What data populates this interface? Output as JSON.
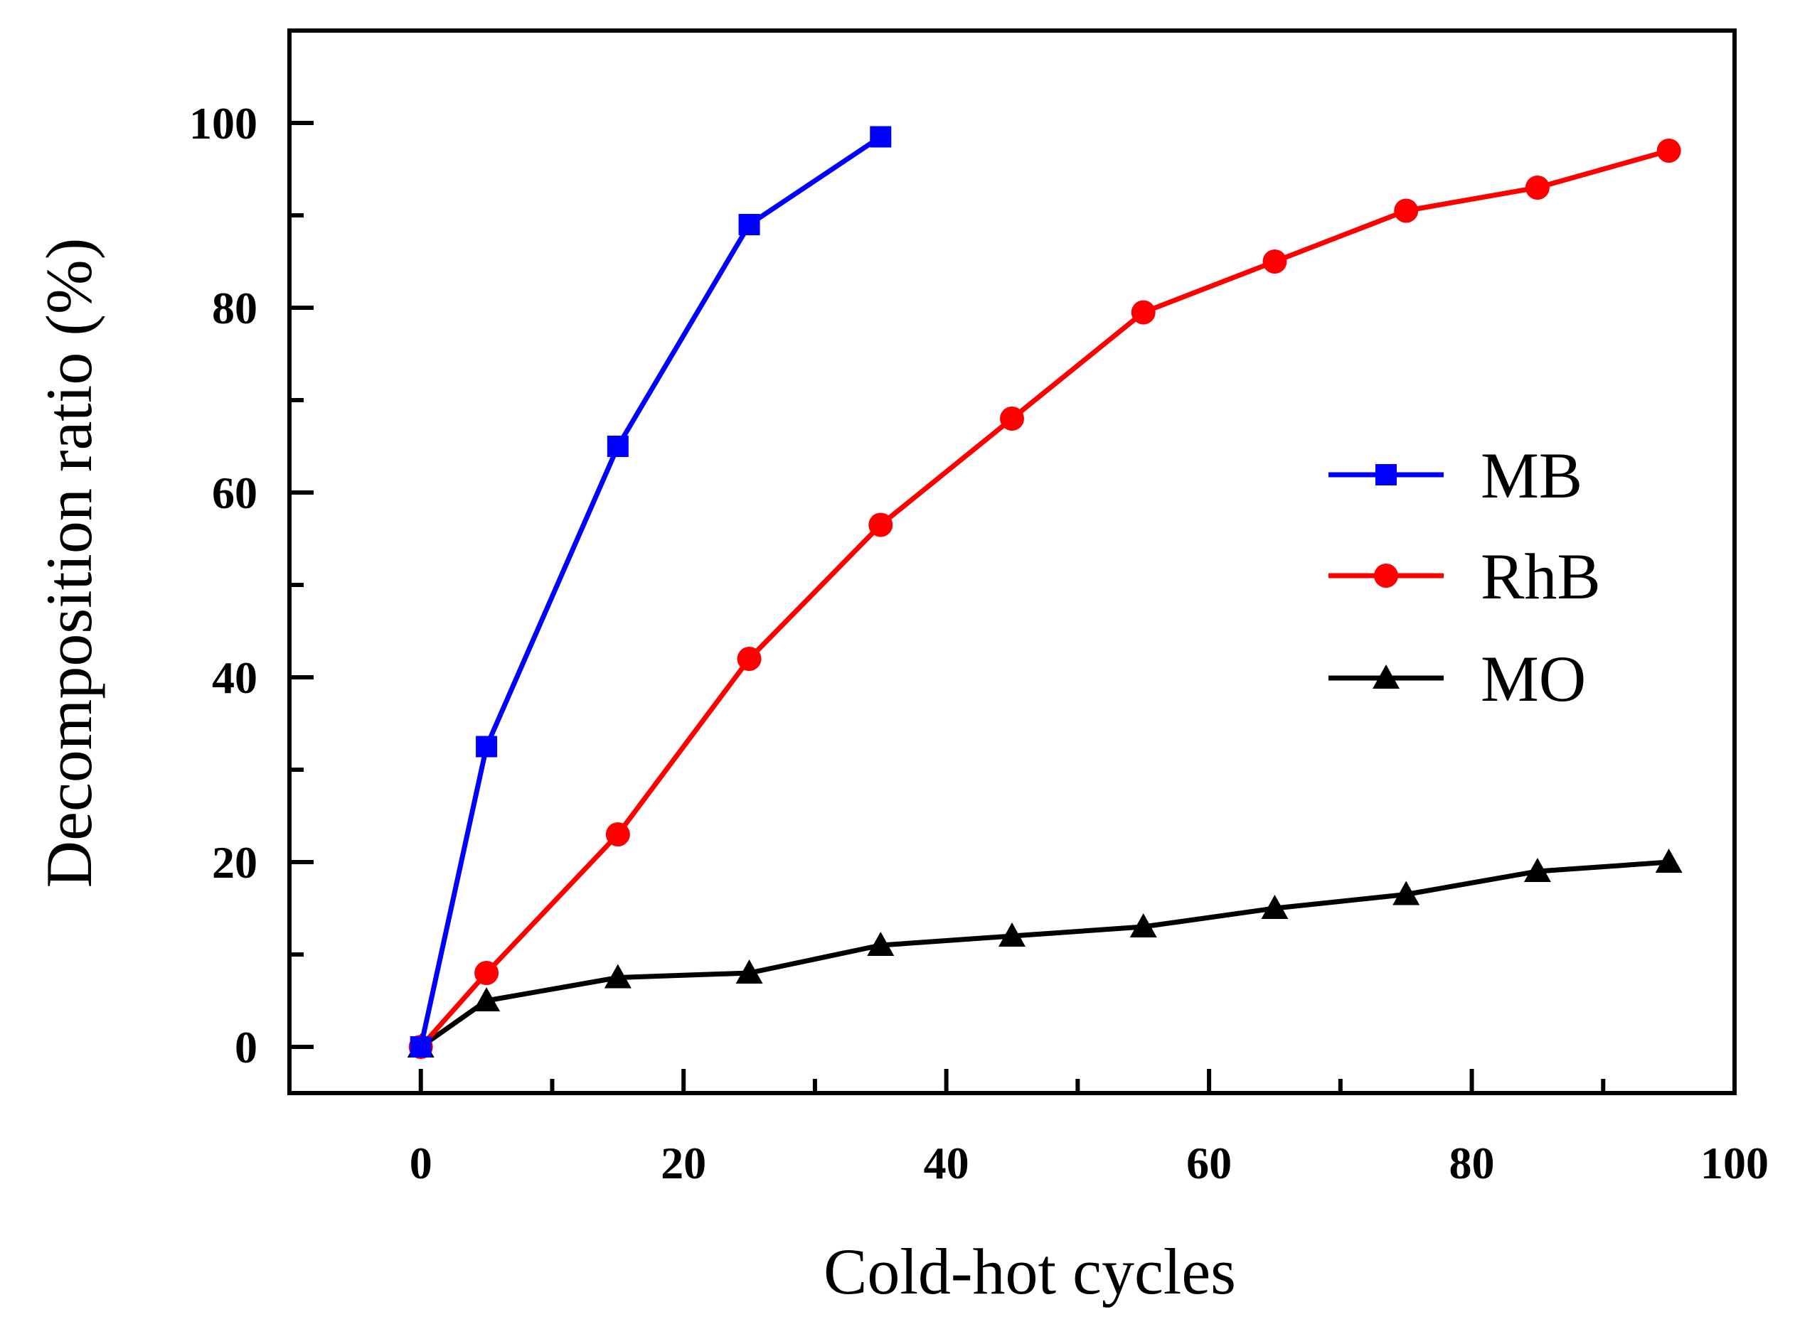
{
  "chart_data": {
    "type": "line",
    "title": "",
    "xlabel": "Cold-hot cycles",
    "ylabel": "Decomposition ratio (%)",
    "xlim": [
      -10,
      100
    ],
    "ylim": [
      -5,
      110
    ],
    "xticks": [
      0,
      20,
      40,
      60,
      80,
      100
    ],
    "xticks_minor": [
      10,
      30,
      50,
      70,
      90
    ],
    "yticks": [
      0,
      20,
      40,
      60,
      80,
      100
    ],
    "yticks_minor": [
      10,
      30,
      50,
      70,
      90
    ],
    "grid": false,
    "legend_position": "center-right",
    "series": [
      {
        "name": "MB",
        "color": "#0000FF",
        "marker": "square",
        "x": [
          0,
          5,
          15,
          25,
          35
        ],
        "y": [
          0,
          32.5,
          65,
          89,
          98.5
        ]
      },
      {
        "name": "RhB",
        "color": "#FF0000",
        "marker": "circle",
        "x": [
          0,
          5,
          15,
          25,
          35,
          45,
          55,
          65,
          75,
          85,
          95
        ],
        "y": [
          0,
          8,
          23,
          42,
          56.5,
          68,
          79.5,
          85,
          90.5,
          93,
          97
        ]
      },
      {
        "name": "MO",
        "color": "#000000",
        "marker": "triangle",
        "x": [
          0,
          5,
          15,
          25,
          35,
          45,
          55,
          65,
          75,
          85,
          95
        ],
        "y": [
          0,
          5,
          7.5,
          8,
          11,
          12,
          13,
          15,
          16.5,
          19,
          20
        ]
      }
    ]
  }
}
